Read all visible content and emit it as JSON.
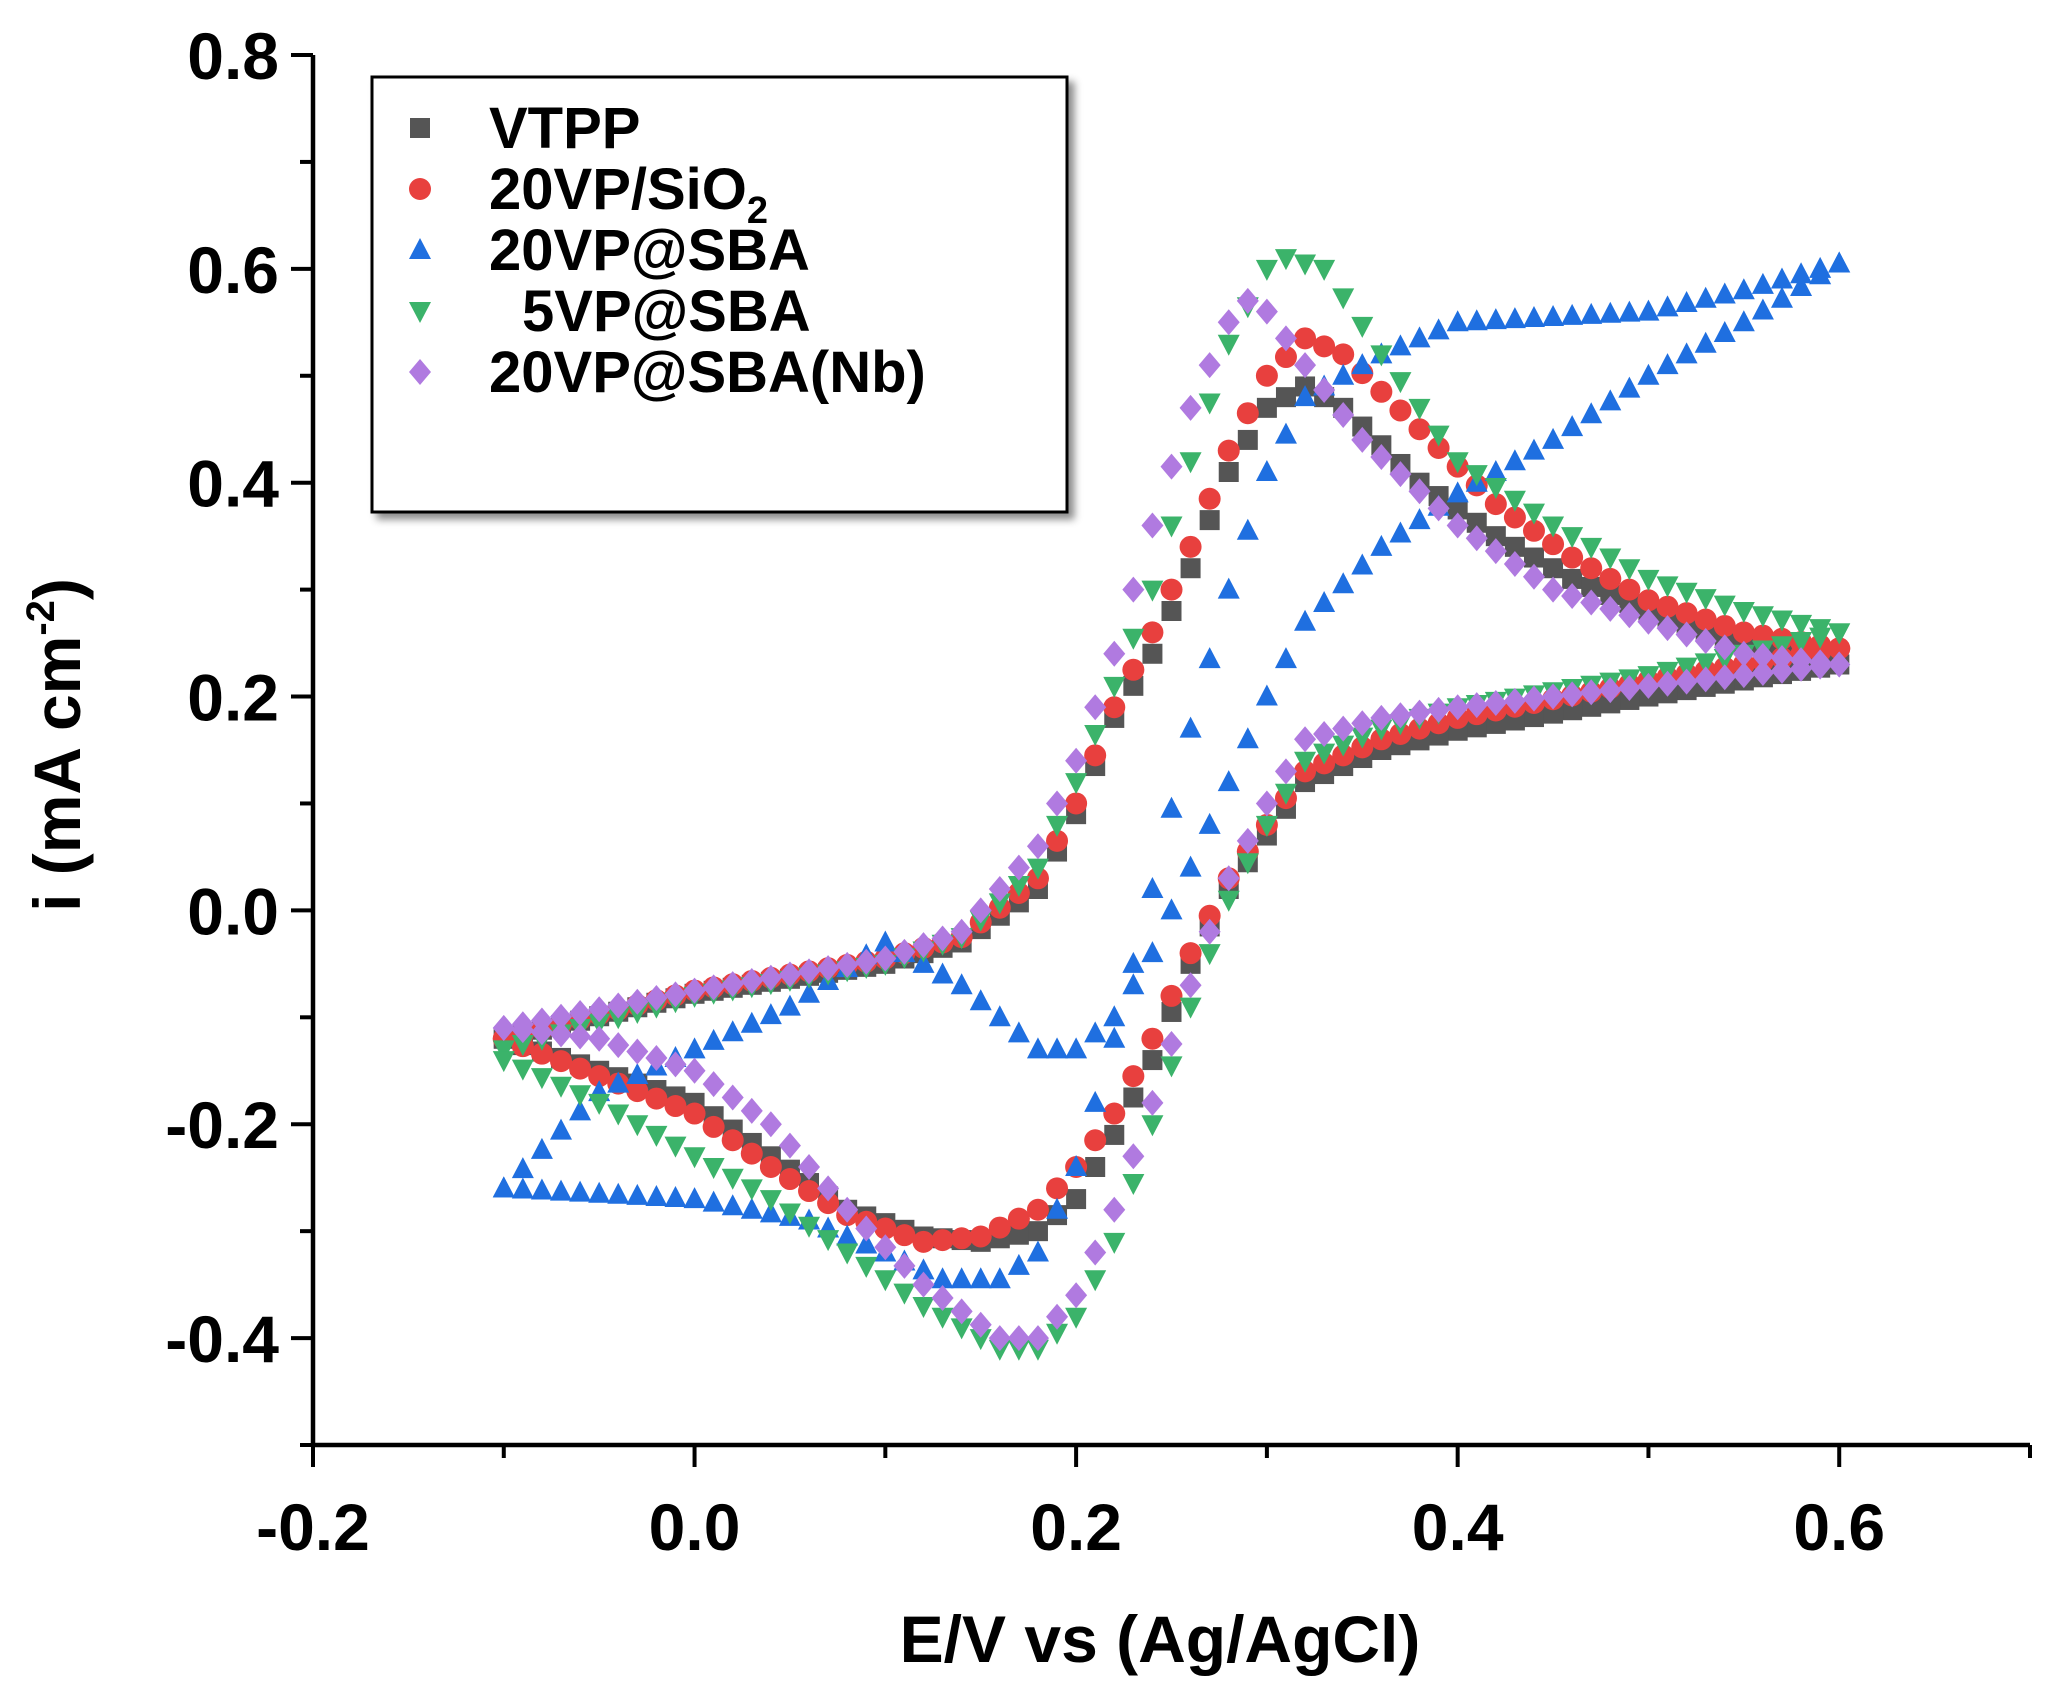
{
  "chart_data": {
    "type": "scatter",
    "title": "",
    "xlabel": "E/V vs (Ag/AgCl)",
    "ylabel_main": "i (mA cm",
    "ylabel_sup": "-2",
    "ylabel_tail": ")",
    "xlim": [
      -0.2,
      0.7
    ],
    "ylim": [
      -0.5,
      0.8
    ],
    "xticks": [
      -0.2,
      0.0,
      0.2,
      0.4,
      0.6
    ],
    "xtick_labels": [
      "-0.2",
      "0.0",
      "0.2",
      "0.4",
      "0.6"
    ],
    "yticks": [
      -0.4,
      -0.2,
      0.0,
      0.2,
      0.4,
      0.6,
      0.8
    ],
    "ytick_labels": [
      "-0.4",
      "-0.2",
      "0.0",
      "0.2",
      "0.4",
      "0.6",
      "0.8"
    ],
    "legend_position": "top-left",
    "series": [
      {
        "name": "VTPP",
        "sub": "",
        "color": "#555555",
        "marker": "square",
        "forward": [
          [
            -0.1,
            -0.12
          ],
          [
            0.0,
            -0.078
          ],
          [
            0.1,
            -0.05
          ],
          [
            0.14,
            -0.03
          ],
          [
            0.18,
            0.02
          ],
          [
            0.2,
            0.09
          ],
          [
            0.22,
            0.18
          ],
          [
            0.24,
            0.24
          ],
          [
            0.26,
            0.32
          ],
          [
            0.28,
            0.41
          ],
          [
            0.3,
            0.47
          ],
          [
            0.32,
            0.49
          ],
          [
            0.34,
            0.47
          ],
          [
            0.38,
            0.4
          ],
          [
            0.42,
            0.35
          ],
          [
            0.46,
            0.31
          ],
          [
            0.5,
            0.28
          ],
          [
            0.55,
            0.25
          ],
          [
            0.6,
            0.23
          ]
        ],
        "reverse": [
          [
            0.6,
            0.23
          ],
          [
            0.5,
            0.2
          ],
          [
            0.4,
            0.168
          ],
          [
            0.36,
            0.15
          ],
          [
            0.32,
            0.12
          ],
          [
            0.3,
            0.07
          ],
          [
            0.28,
            0.02
          ],
          [
            0.26,
            -0.05
          ],
          [
            0.24,
            -0.14
          ],
          [
            0.22,
            -0.21
          ],
          [
            0.2,
            -0.27
          ],
          [
            0.18,
            -0.3
          ],
          [
            0.15,
            -0.31
          ],
          [
            0.12,
            -0.305
          ],
          [
            0.08,
            -0.28
          ],
          [
            0.04,
            -0.23
          ],
          [
            0.0,
            -0.18
          ],
          [
            -0.05,
            -0.15
          ],
          [
            -0.1,
            -0.12
          ]
        ]
      },
      {
        "name": "20VP/SiO",
        "sub": "2",
        "color": "#e8403e",
        "marker": "circle",
        "forward": [
          [
            -0.1,
            -0.12
          ],
          [
            0.0,
            -0.075
          ],
          [
            0.1,
            -0.045
          ],
          [
            0.14,
            -0.025
          ],
          [
            0.18,
            0.03
          ],
          [
            0.2,
            0.1
          ],
          [
            0.22,
            0.19
          ],
          [
            0.24,
            0.26
          ],
          [
            0.26,
            0.34
          ],
          [
            0.28,
            0.43
          ],
          [
            0.3,
            0.5
          ],
          [
            0.32,
            0.535
          ],
          [
            0.34,
            0.52
          ],
          [
            0.38,
            0.45
          ],
          [
            0.42,
            0.38
          ],
          [
            0.46,
            0.33
          ],
          [
            0.5,
            0.29
          ],
          [
            0.55,
            0.26
          ],
          [
            0.6,
            0.245
          ]
        ],
        "reverse": [
          [
            0.6,
            0.245
          ],
          [
            0.5,
            0.215
          ],
          [
            0.4,
            0.18
          ],
          [
            0.36,
            0.16
          ],
          [
            0.32,
            0.13
          ],
          [
            0.3,
            0.08
          ],
          [
            0.28,
            0.03
          ],
          [
            0.26,
            -0.04
          ],
          [
            0.24,
            -0.12
          ],
          [
            0.22,
            -0.19
          ],
          [
            0.2,
            -0.24
          ],
          [
            0.18,
            -0.28
          ],
          [
            0.15,
            -0.305
          ],
          [
            0.12,
            -0.31
          ],
          [
            0.08,
            -0.285
          ],
          [
            0.04,
            -0.24
          ],
          [
            0.0,
            -0.19
          ],
          [
            -0.05,
            -0.155
          ],
          [
            -0.1,
            -0.12
          ]
        ]
      },
      {
        "name": "20VP@SBA",
        "sub": "",
        "color": "#1f6fe0",
        "marker": "triangle-up",
        "forward": [
          [
            -0.1,
            -0.26
          ],
          [
            0.0,
            -0.27
          ],
          [
            0.06,
            -0.29
          ],
          [
            0.1,
            -0.32
          ],
          [
            0.13,
            -0.345
          ],
          [
            0.16,
            -0.345
          ],
          [
            0.18,
            -0.32
          ],
          [
            0.2,
            -0.24
          ],
          [
            0.22,
            -0.12
          ],
          [
            0.24,
            0.02
          ],
          [
            0.26,
            0.17
          ],
          [
            0.28,
            0.3
          ],
          [
            0.3,
            0.41
          ],
          [
            0.32,
            0.48
          ],
          [
            0.36,
            0.52
          ],
          [
            0.4,
            0.55
          ],
          [
            0.45,
            0.555
          ],
          [
            0.5,
            0.56
          ],
          [
            0.55,
            0.58
          ],
          [
            0.6,
            0.605
          ]
        ],
        "reverse": [
          [
            0.6,
            0.605
          ],
          [
            0.55,
            0.55
          ],
          [
            0.5,
            0.5
          ],
          [
            0.45,
            0.44
          ],
          [
            0.4,
            0.39
          ],
          [
            0.36,
            0.34
          ],
          [
            0.32,
            0.27
          ],
          [
            0.3,
            0.2
          ],
          [
            0.28,
            0.12
          ],
          [
            0.26,
            0.04
          ],
          [
            0.24,
            -0.04
          ],
          [
            0.22,
            -0.1
          ],
          [
            0.2,
            -0.13
          ],
          [
            0.18,
            -0.13
          ],
          [
            0.14,
            -0.07
          ],
          [
            0.1,
            -0.03
          ],
          [
            0.05,
            -0.09
          ],
          [
            0.0,
            -0.13
          ],
          [
            -0.05,
            -0.17
          ],
          [
            -0.1,
            -0.26
          ]
        ]
      },
      {
        "name": "5VP@SBA",
        "sub": "",
        "color": "#3bb36a",
        "marker": "triangle-down",
        "forward": [
          [
            -0.1,
            -0.13
          ],
          [
            0.0,
            -0.08
          ],
          [
            0.1,
            -0.05
          ],
          [
            0.14,
            -0.025
          ],
          [
            0.18,
            0.04
          ],
          [
            0.2,
            0.12
          ],
          [
            0.22,
            0.21
          ],
          [
            0.24,
            0.3
          ],
          [
            0.26,
            0.42
          ],
          [
            0.28,
            0.53
          ],
          [
            0.3,
            0.6
          ],
          [
            0.31,
            0.61
          ],
          [
            0.33,
            0.6
          ],
          [
            0.36,
            0.52
          ],
          [
            0.4,
            0.42
          ],
          [
            0.45,
            0.36
          ],
          [
            0.5,
            0.31
          ],
          [
            0.55,
            0.28
          ],
          [
            0.6,
            0.26
          ]
        ],
        "reverse": [
          [
            0.6,
            0.26
          ],
          [
            0.5,
            0.22
          ],
          [
            0.4,
            0.19
          ],
          [
            0.36,
            0.17
          ],
          [
            0.32,
            0.14
          ],
          [
            0.3,
            0.08
          ],
          [
            0.28,
            0.01
          ],
          [
            0.26,
            -0.09
          ],
          [
            0.24,
            -0.2
          ],
          [
            0.22,
            -0.31
          ],
          [
            0.2,
            -0.38
          ],
          [
            0.18,
            -0.41
          ],
          [
            0.16,
            -0.41
          ],
          [
            0.12,
            -0.37
          ],
          [
            0.08,
            -0.32
          ],
          [
            0.04,
            -0.27
          ],
          [
            0.0,
            -0.23
          ],
          [
            -0.05,
            -0.18
          ],
          [
            -0.1,
            -0.14
          ]
        ]
      },
      {
        "name": "20VP@SBA(Nb)",
        "sub": "",
        "color": "#b07ae0",
        "marker": "diamond",
        "forward": [
          [
            -0.1,
            -0.11
          ],
          [
            0.0,
            -0.075
          ],
          [
            0.1,
            -0.045
          ],
          [
            0.14,
            -0.02
          ],
          [
            0.18,
            0.06
          ],
          [
            0.2,
            0.14
          ],
          [
            0.22,
            0.24
          ],
          [
            0.24,
            0.36
          ],
          [
            0.26,
            0.47
          ],
          [
            0.28,
            0.55
          ],
          [
            0.29,
            0.57
          ],
          [
            0.3,
            0.56
          ],
          [
            0.32,
            0.51
          ],
          [
            0.35,
            0.44
          ],
          [
            0.4,
            0.36
          ],
          [
            0.45,
            0.3
          ],
          [
            0.5,
            0.27
          ],
          [
            0.55,
            0.24
          ],
          [
            0.6,
            0.23
          ]
        ],
        "reverse": [
          [
            0.6,
            0.23
          ],
          [
            0.5,
            0.21
          ],
          [
            0.4,
            0.19
          ],
          [
            0.36,
            0.18
          ],
          [
            0.32,
            0.16
          ],
          [
            0.3,
            0.1
          ],
          [
            0.28,
            0.03
          ],
          [
            0.26,
            -0.07
          ],
          [
            0.24,
            -0.18
          ],
          [
            0.22,
            -0.28
          ],
          [
            0.2,
            -0.36
          ],
          [
            0.18,
            -0.4
          ],
          [
            0.16,
            -0.4
          ],
          [
            0.12,
            -0.35
          ],
          [
            0.08,
            -0.28
          ],
          [
            0.04,
            -0.2
          ],
          [
            0.0,
            -0.15
          ],
          [
            -0.05,
            -0.12
          ],
          [
            -0.1,
            -0.11
          ]
        ]
      }
    ]
  }
}
